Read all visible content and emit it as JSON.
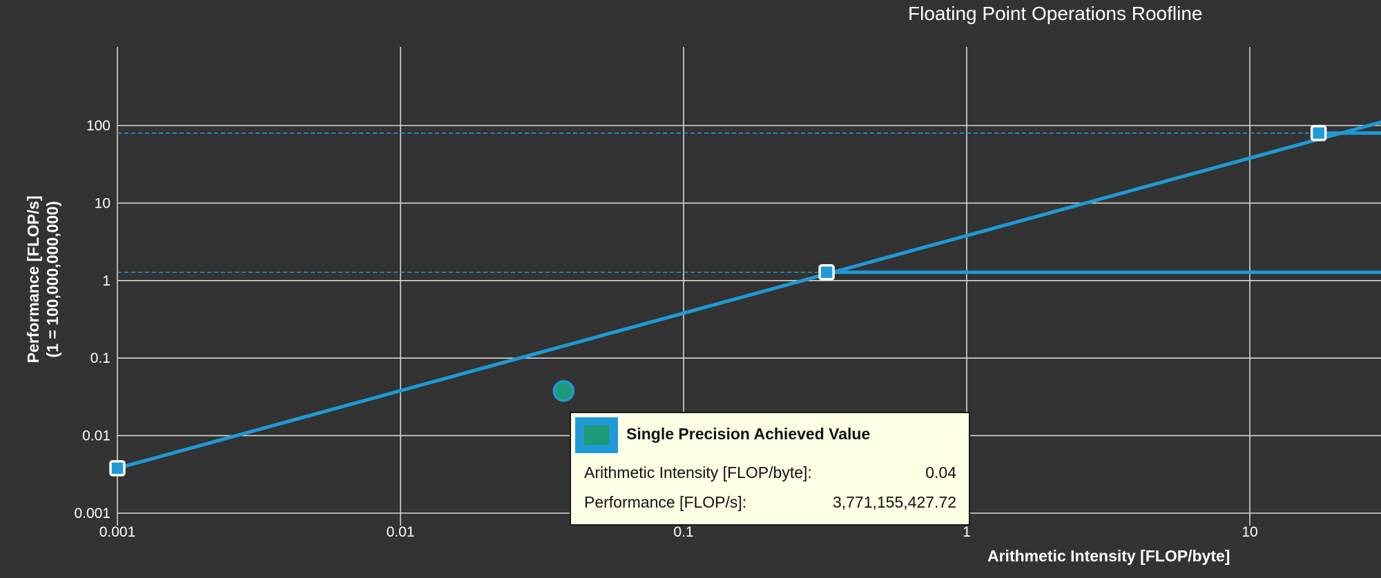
{
  "chart_data": {
    "type": "line",
    "title": "Floating Point Operations Roofline",
    "xlabel": "Arithmetic Intensity [FLOP/byte]",
    "ylabel": [
      "Performance [FLOP/s]",
      "(1 = 100,000,000,000)"
    ],
    "x_scale": "log",
    "y_scale": "log",
    "xlim": [
      0.001,
      40
    ],
    "ylim": [
      0.001,
      1000
    ],
    "x_ticks": [
      {
        "value": 0.001,
        "label": "0.001"
      },
      {
        "value": 0.01,
        "label": "0.01"
      },
      {
        "value": 0.1,
        "label": "0.1"
      },
      {
        "value": 1,
        "label": "1"
      },
      {
        "value": 10,
        "label": "10"
      }
    ],
    "y_ticks": [
      {
        "value": 0.001,
        "label": "0.001"
      },
      {
        "value": 0.01,
        "label": "0.01"
      },
      {
        "value": 0.1,
        "label": "0.1"
      },
      {
        "value": 1,
        "label": "1"
      },
      {
        "value": 10,
        "label": "10"
      },
      {
        "value": 100,
        "label": "100"
      }
    ],
    "grid": true,
    "colors": {
      "background": "#333333",
      "grid": "#d8d8d8",
      "roof": "#1f9ad6",
      "achieved_fill": "#1e9a77",
      "achieved_border": "#1f9ad6",
      "tooltip_bg": "#ffffe5"
    },
    "series": [
      {
        "role": "bandwidth-roof",
        "x": [
          0.001,
          40
        ],
        "y": [
          0.0038,
          152
        ]
      },
      {
        "role": "compute-roof",
        "x": [
          0.32,
          40
        ],
        "y": [
          1.28,
          1.28
        ],
        "dashed_from": 0.001
      },
      {
        "role": "compute-roof",
        "x": [
          17.5,
          40
        ],
        "y": [
          80,
          80
        ],
        "dashed_from": 0.001
      }
    ],
    "points": [
      {
        "role": "ridge",
        "x": 0.001,
        "y": 0.0038
      },
      {
        "role": "ridge",
        "x": 0.32,
        "y": 1.28
      },
      {
        "role": "ridge",
        "x": 17.5,
        "y": 80
      },
      {
        "role": "achieved",
        "x": 0.0377,
        "y": 0.0377
      }
    ],
    "tooltip": {
      "title": "Single Precision Achieved Value",
      "rows": [
        {
          "label": "Arithmetic Intensity [FLOP/byte]:",
          "value": "0.04"
        },
        {
          "label": "Performance [FLOP/s]:",
          "value": "3,771,155,427.72"
        }
      ]
    }
  }
}
